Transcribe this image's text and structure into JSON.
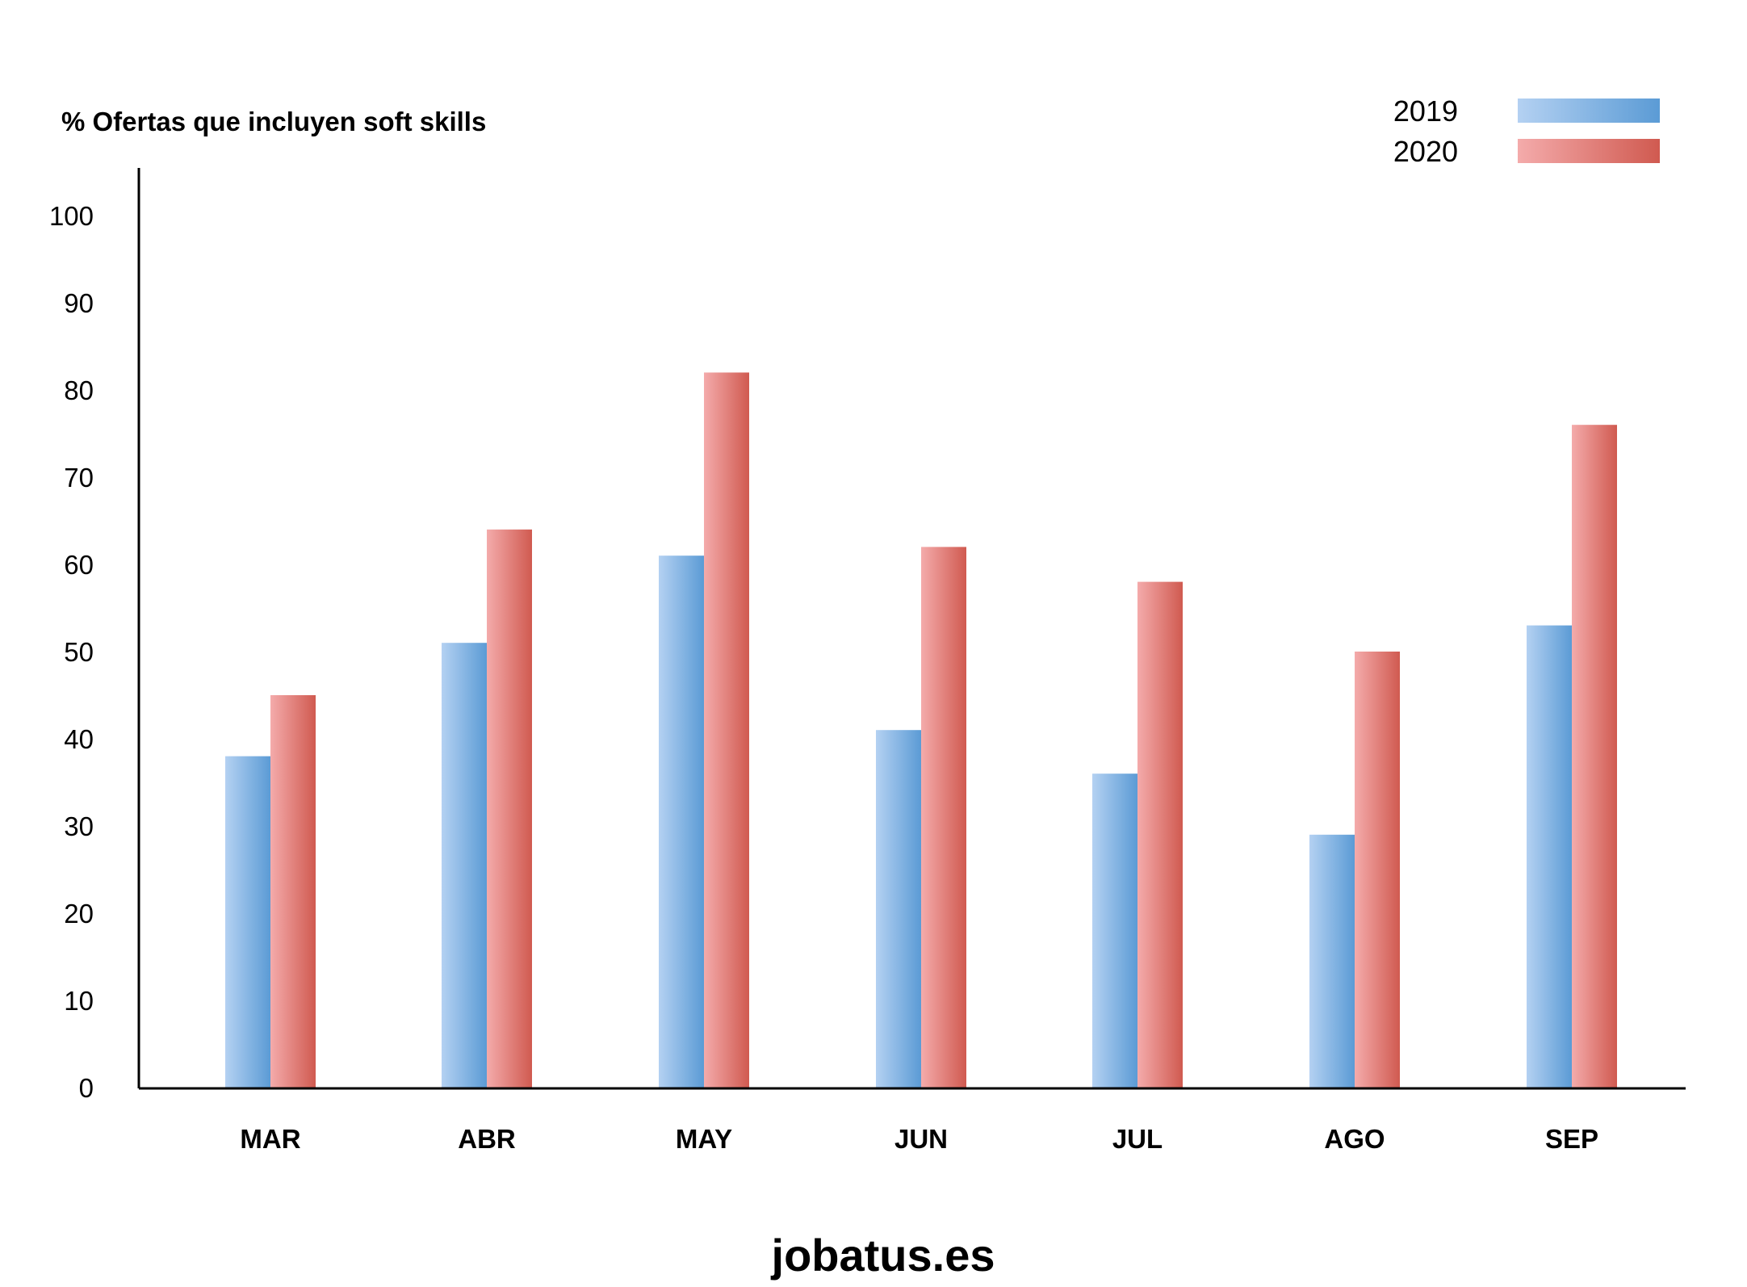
{
  "chart_data": {
    "type": "bar",
    "ylabel": "% Ofertas que incluyen soft skills",
    "xlabel": "",
    "ylim": [
      0,
      100
    ],
    "yticks": [
      0,
      10,
      20,
      30,
      40,
      50,
      60,
      70,
      80,
      90,
      100
    ],
    "categories": [
      "MAR",
      "ABR",
      "MAY",
      "JUN",
      "JUL",
      "AGO",
      "SEP"
    ],
    "series": [
      {
        "name": "2019",
        "values": [
          38,
          51,
          61,
          41,
          36,
          29,
          53
        ],
        "color_light": "#b4d1f2",
        "color_dark": "#5b9bd5"
      },
      {
        "name": "2020",
        "values": [
          45,
          64,
          82,
          62,
          58,
          50,
          76
        ],
        "color_light": "#f4abab",
        "color_dark": "#d05a50"
      }
    ],
    "legend_position": "top-right",
    "grid": false
  },
  "footer": {
    "watermark": "jobatus.es"
  }
}
